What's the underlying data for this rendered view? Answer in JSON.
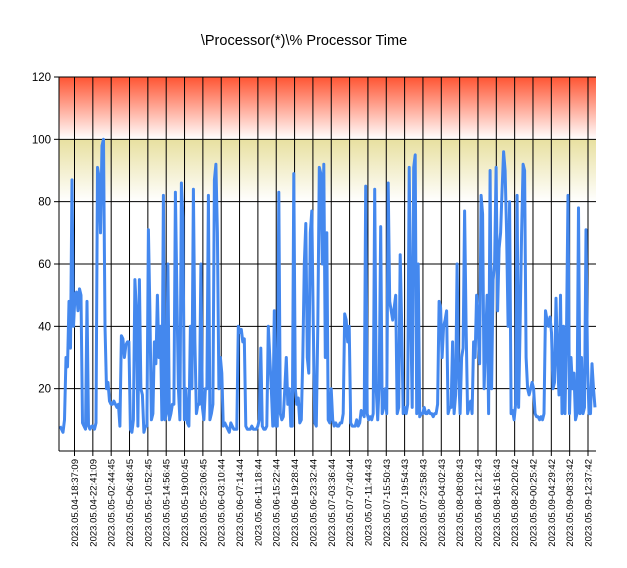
{
  "chart_data": {
    "type": "line",
    "title": "\\Processor(*)\\% Processor Time",
    "xlabel": "",
    "ylabel": "",
    "ylim": [
      0,
      120
    ],
    "yticks": [
      20,
      40,
      60,
      80,
      100,
      120
    ],
    "grid": true,
    "legend": "none",
    "bands": [
      {
        "from": 80,
        "to": 100,
        "color_top": "#ffffcc",
        "color_bottom": "#ffffff",
        "color_edge": "#e8e0a0"
      },
      {
        "from": 100,
        "to": 120,
        "color_top": "#ff5533",
        "color_bottom": "#ffffff"
      }
    ],
    "x_tick_labels": [
      "2023.05.04-18:37:09",
      "2023.05.04-22:41:09",
      "2023.05.05-02:44:45",
      "2023.05.05-06:48:45",
      "2023.05.05-10:52:45",
      "2023.05.05-14:56:45",
      "2023.05.05-19:00:45",
      "2023.05.05-23:06:45",
      "2023.05.06-03:10:44",
      "2023.05.06-07:14:44",
      "2023.05.06-11:18:44",
      "2023.05.06-15:22:44",
      "2023.05.06-19:28:44",
      "2023.05.06-23:32:44",
      "2023.05.07-03:36:44",
      "2023.05.07-07:40:44",
      "2023.05.07-11:44:43",
      "2023.05.07-15:50:43",
      "2023.05.07-19:54:43",
      "2023.05.07-23:58:43",
      "2023.05.08-04:02:43",
      "2023.05.08-08:08:43",
      "2023.05.08-12:12:43",
      "2023.05.08-16:16:43",
      "2023.05.08-20:20:42",
      "2023.05.09-00:25:42",
      "2023.05.09-04:29:42",
      "2023.05.09-08:33:42",
      "2023.05.09-12:37:42"
    ],
    "series": [
      {
        "color": "#4488ee",
        "values": [
          8,
          7,
          6,
          10,
          30,
          27,
          48,
          33,
          87,
          40,
          50,
          51,
          45,
          52,
          50,
          9,
          8,
          7,
          48,
          8,
          7,
          8,
          8,
          7,
          9,
          91,
          88,
          70,
          98,
          100,
          40,
          20,
          22,
          16,
          15,
          15,
          16,
          15,
          14,
          15,
          8,
          37,
          36,
          30,
          34,
          35,
          35,
          7,
          6,
          10,
          55,
          45,
          8,
          55,
          20,
          18,
          6,
          8,
          8,
          71,
          45,
          10,
          12,
          35,
          28,
          50,
          30,
          40,
          10,
          82,
          10,
          12,
          60,
          10,
          12,
          15,
          15,
          83,
          50,
          20,
          10,
          86,
          75,
          10,
          20,
          9,
          8,
          40,
          20,
          84,
          35,
          12,
          15,
          15,
          60,
          14,
          10,
          20,
          20,
          82,
          10,
          12,
          15,
          87,
          92,
          70,
          20,
          30,
          25,
          8,
          9,
          8,
          7,
          6,
          9,
          8,
          7,
          7,
          7,
          40,
          38,
          39,
          35,
          36,
          8,
          7,
          7,
          7,
          8,
          7,
          7,
          7,
          8,
          10,
          33,
          8,
          7,
          7,
          8,
          40,
          30,
          20,
          8,
          45,
          8,
          8,
          83,
          12,
          10,
          11,
          20,
          30,
          15,
          20,
          8,
          8,
          89,
          20,
          15,
          17,
          9,
          10,
          30,
          60,
          73,
          30,
          25,
          70,
          77,
          40,
          9,
          8,
          40,
          91,
          89,
          60,
          92,
          30,
          70,
          10,
          9,
          20,
          10,
          8,
          9,
          8,
          8,
          9,
          9,
          12,
          44,
          42,
          35,
          40,
          9,
          8,
          8,
          8,
          10,
          8,
          9,
          13,
          12,
          11,
          85,
          12,
          10,
          11,
          10,
          12,
          84,
          20,
          10,
          22,
          72,
          12,
          14,
          20,
          12,
          86,
          48,
          45,
          42,
          46,
          50,
          12,
          14,
          63,
          40,
          12,
          14,
          12,
          15,
          91,
          45,
          14,
          91,
          95,
          12,
          60,
          11,
          12,
          12,
          14,
          12,
          12,
          13,
          12,
          12,
          11,
          12,
          12,
          15,
          48,
          46,
          30,
          40,
          42,
          45,
          12,
          14,
          14,
          35,
          12,
          18,
          60,
          25,
          12,
          30,
          33,
          77,
          40,
          12,
          14,
          16,
          12,
          35,
          30,
          50,
          40,
          28,
          82,
          76,
          20,
          35,
          50,
          12,
          90,
          20,
          55,
          60,
          91,
          45,
          65,
          70,
          84,
          96,
          90,
          70,
          40,
          80,
          12,
          13,
          10,
          15,
          82,
          14,
          40,
          70,
          92,
          90,
          30,
          20,
          18,
          20,
          22,
          20,
          12,
          11,
          11,
          10,
          11,
          10,
          12,
          45,
          42,
          40,
          43,
          38,
          20,
          22,
          49,
          30,
          18,
          50,
          12,
          40,
          12,
          38,
          82,
          12,
          30,
          20,
          25,
          10,
          12,
          78,
          12,
          30,
          12,
          14,
          71,
          28,
          12,
          12,
          28,
          20,
          14
        ]
      }
    ]
  }
}
